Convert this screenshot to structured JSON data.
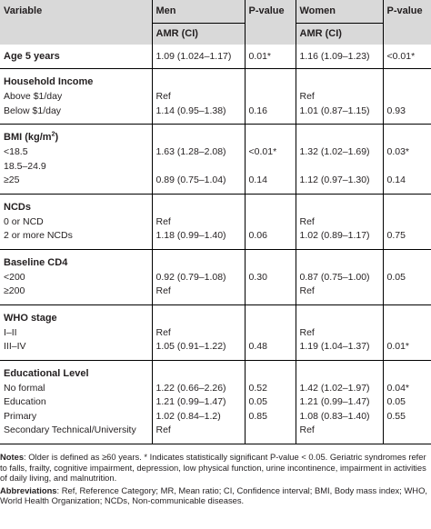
{
  "header": {
    "variable": "Variable",
    "men": "Men",
    "pvalue": "P-value",
    "women": "Women",
    "amr_ci": "AMR (CI)"
  },
  "age": {
    "label": "Age 5 years",
    "men": "1.09 (1.024–1.17)",
    "p_men": "0.01*",
    "women": "1.16 (1.09–1.23)",
    "p_women": "<0.01*"
  },
  "income": {
    "title": "Household Income",
    "rows": [
      {
        "label": "Above $1/day",
        "men": "Ref",
        "p_men": "",
        "women": "Ref",
        "p_women": ""
      },
      {
        "label": "Below $1/day",
        "men": "1.14 (0.95–1.38)",
        "p_men": "0.16",
        "women": "1.01 (0.87–1.15)",
        "p_women": "0.93"
      }
    ]
  },
  "bmi": {
    "title_main": "BMI (kg/m",
    "title_sup": "2",
    "title_end": ")",
    "rows": [
      {
        "label": "<18.5",
        "men": "1.63 (1.28–2.08)",
        "p_men": "<0.01*",
        "women": "1.32 (1.02–1.69)",
        "p_women": "0.03*"
      },
      {
        "label": "18.5–24.9",
        "men": "",
        "p_men": "",
        "women": "",
        "p_women": ""
      },
      {
        "label": "≥25",
        "men": "0.89 (0.75–1.04)",
        "p_men": "0.14",
        "women": "1.12 (0.97–1.30)",
        "p_women": "0.14"
      }
    ]
  },
  "ncds": {
    "title": "NCDs",
    "rows": [
      {
        "label": "0 or NCD",
        "men": "Ref",
        "p_men": "",
        "women": "Ref",
        "p_women": ""
      },
      {
        "label": "2 or more NCDs",
        "men": "1.18 (0.99–1.40)",
        "p_men": "0.06",
        "women": "1.02 (0.89–1.17)",
        "p_women": "0.75"
      }
    ]
  },
  "cd4": {
    "title": "Baseline CD4",
    "rows": [
      {
        "label": "<200",
        "men": "0.92 (0.79–1.08)",
        "p_men": "0.30",
        "women": "0.87 (0.75–1.00)",
        "p_women": "0.05"
      },
      {
        "label": "≥200",
        "men": "Ref",
        "p_men": "",
        "women": "Ref",
        "p_women": ""
      }
    ]
  },
  "who": {
    "title": "WHO stage",
    "rows": [
      {
        "label": "I–II",
        "men": "Ref",
        "p_men": "",
        "women": "Ref",
        "p_women": ""
      },
      {
        "label": "III–IV",
        "men": "1.05 (0.91–1.22)",
        "p_men": "0.48",
        "women": "1.19 (1.04–1.37)",
        "p_women": "0.01*"
      }
    ]
  },
  "edu": {
    "title": "Educational Level",
    "rows": [
      {
        "label": "No formal",
        "men": "1.22 (0.66–2.26)",
        "p_men": "0.52",
        "women": "1.42 (1.02–1.97)",
        "p_women": "0.04*"
      },
      {
        "label": "Education",
        "men": "1.21 (0.99–1.47)",
        "p_men": "0.05",
        "women": "1.21 (0.99–1.47)",
        "p_women": "0.05"
      },
      {
        "label": "Primary",
        "men": "1.02 (0.84–1.2)",
        "p_men": "0.85",
        "women": "1.08 (0.83–1.40)",
        "p_women": "0.55"
      },
      {
        "label": "Secondary Technical/University",
        "men": "Ref",
        "p_men": "",
        "women": "Ref",
        "p_women": ""
      }
    ]
  },
  "notes": {
    "notes_label": "Notes",
    "notes_text": ": Older is defined as ≥60 years. * Indicates statistically significant P-value < 0.05. Geriatric syndromes refer to falls, frailty, cognitive impairment, depression, low physical function, urine incontinence, impairment in activities of daily living, and malnutrition.",
    "abbr_label": "Abbreviations",
    "abbr_text": ": Ref, Reference Category; MR, Mean ratio; CI, Confidence interval; BMI, Body mass index; WHO, World Health Organization; NCDs, Non-communicable diseases."
  }
}
